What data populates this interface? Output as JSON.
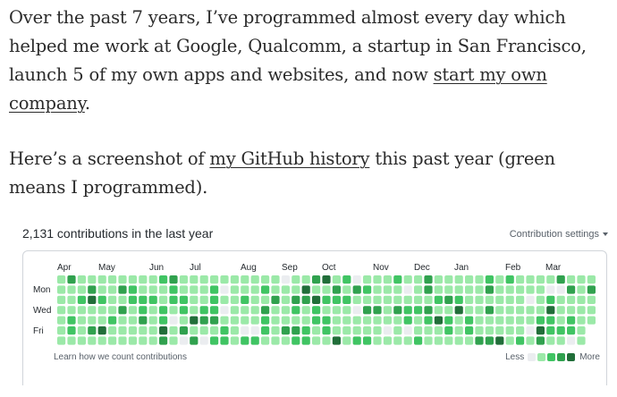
{
  "article": {
    "p1_text": "Over the past 7 years, I’ve programmed almost every day which helped me work at Google, Qualcomm, a startup in San Francisco, launch 5 of my own apps and websites, and now ",
    "p1_link": "start my own company",
    "p1_end": ".",
    "p2_start": "Here’s a screenshot of ",
    "p2_link": "my GitHub history",
    "p2_end": " this past year (green means I programmed)."
  },
  "github": {
    "contributions_title": "2,131 contributions in the last year",
    "settings_label": "Contribution settings",
    "months": [
      "Apr",
      "May",
      "Jun",
      "Jul",
      "Aug",
      "Sep",
      "Oct",
      "Nov",
      "Dec",
      "Jan",
      "Feb",
      "Mar"
    ],
    "day_labels": [
      "Mon",
      "Wed",
      "Fri"
    ],
    "learn_link": "Learn how we count contributions",
    "legend_less": "Less",
    "legend_more": "More",
    "colors": [
      "#ebedf0",
      "#9be9a8",
      "#40c463",
      "#30a14e",
      "#216e39"
    ],
    "weeks": 53,
    "last_week_days": 5
  }
}
